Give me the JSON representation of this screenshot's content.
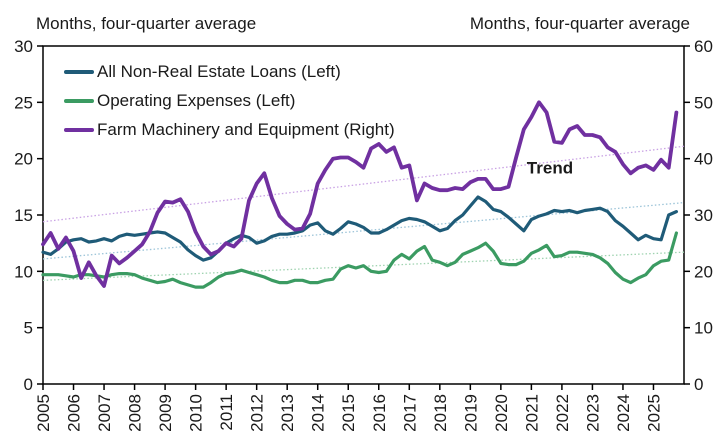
{
  "chart_data": {
    "type": "line",
    "title_left": "Months, four-quarter average",
    "title_right": "Months, four-quarter average",
    "x_range": [
      2005,
      2026
    ],
    "x_tick_labels": [
      "2005",
      "2006",
      "2007",
      "2008",
      "2009",
      "2010",
      "2011",
      "2012",
      "2013",
      "2014",
      "2015",
      "2016",
      "2017",
      "2018",
      "2019",
      "2020",
      "2021",
      "2022",
      "2023",
      "2024",
      "2025"
    ],
    "left_axis": {
      "ticks": [
        0,
        5,
        10,
        15,
        20,
        25,
        30
      ],
      "range": [
        0,
        30
      ]
    },
    "right_axis": {
      "ticks": [
        0,
        10,
        20,
        30,
        40,
        50,
        60
      ],
      "range": [
        0,
        60
      ]
    },
    "grid": false,
    "legend_position": "top-left-inside",
    "annotation": {
      "text": "Trend",
      "x": 2020.85,
      "axis": "right",
      "value": 37.4
    },
    "series": [
      {
        "name": "All Non-Real Estate Loans (Left)",
        "axis": "left",
        "color": "#1F5B78",
        "x_start": 2005.0,
        "x_step": 0.25,
        "values": [
          11.7,
          11.5,
          12.0,
          12.6,
          12.8,
          12.9,
          12.6,
          12.7,
          12.9,
          12.7,
          13.1,
          13.3,
          13.2,
          13.3,
          13.4,
          13.5,
          13.4,
          13.0,
          12.6,
          11.9,
          11.4,
          11.0,
          11.2,
          11.8,
          12.5,
          12.9,
          13.2,
          13.0,
          12.5,
          12.7,
          13.1,
          13.3,
          13.3,
          13.4,
          13.6,
          14.1,
          14.3,
          13.6,
          13.3,
          13.8,
          14.4,
          14.2,
          13.9,
          13.4,
          13.4,
          13.7,
          14.1,
          14.5,
          14.7,
          14.6,
          14.4,
          14.0,
          13.6,
          13.8,
          14.5,
          15.0,
          15.8,
          16.6,
          16.2,
          15.5,
          15.3,
          14.8,
          14.2,
          13.6,
          14.6,
          14.9,
          15.1,
          15.4,
          15.3,
          15.4,
          15.2,
          15.4,
          15.5,
          15.6,
          15.3,
          14.5,
          14.0,
          13.4,
          12.8,
          13.2,
          12.9,
          12.8,
          15.0,
          15.3
        ]
      },
      {
        "name": "Operating Expenses (Left)",
        "axis": "left",
        "color": "#3B9B62",
        "x_start": 2005.0,
        "x_step": 0.25,
        "values": [
          9.7,
          9.7,
          9.7,
          9.6,
          9.5,
          9.7,
          9.7,
          9.6,
          9.5,
          9.7,
          9.8,
          9.8,
          9.7,
          9.4,
          9.2,
          9.0,
          9.1,
          9.3,
          9.0,
          8.8,
          8.6,
          8.6,
          9.0,
          9.5,
          9.8,
          9.9,
          10.1,
          9.9,
          9.7,
          9.5,
          9.2,
          9.0,
          9.0,
          9.2,
          9.2,
          9.0,
          9.0,
          9.2,
          9.3,
          10.2,
          10.5,
          10.3,
          10.5,
          10.0,
          9.9,
          10.0,
          11.0,
          11.5,
          11.1,
          11.8,
          12.2,
          11.0,
          10.8,
          10.5,
          10.8,
          11.5,
          11.8,
          12.1,
          12.5,
          11.8,
          10.7,
          10.6,
          10.6,
          10.9,
          11.6,
          11.9,
          12.3,
          11.3,
          11.4,
          11.7,
          11.7,
          11.6,
          11.5,
          11.2,
          10.7,
          9.9,
          9.3,
          9.0,
          9.4,
          9.7,
          10.5,
          10.9,
          11.0,
          13.4
        ]
      },
      {
        "name": "Farm Machinery and Equipment (Right)",
        "axis": "right",
        "color": "#7030A0",
        "x_start": 2005.0,
        "x_step": 0.25,
        "values": [
          24.8,
          26.8,
          24.0,
          26.0,
          23.6,
          18.8,
          21.6,
          19.2,
          17.4,
          22.8,
          21.4,
          22.4,
          23.6,
          24.8,
          27.0,
          30.4,
          32.4,
          32.2,
          32.8,
          30.6,
          27.0,
          24.4,
          23.0,
          23.6,
          25.0,
          24.4,
          25.8,
          32.6,
          35.6,
          37.4,
          33.0,
          29.8,
          28.4,
          27.4,
          27.6,
          30.2,
          35.6,
          38.0,
          40.0,
          40.2,
          40.2,
          39.4,
          38.4,
          41.8,
          42.6,
          41.2,
          42.0,
          38.4,
          38.8,
          32.6,
          35.6,
          34.8,
          34.4,
          34.4,
          34.8,
          34.6,
          35.8,
          36.4,
          36.4,
          34.6,
          34.6,
          35.0,
          40.2,
          45.2,
          47.4,
          50.0,
          48.2,
          43.0,
          42.8,
          45.2,
          45.8,
          44.2,
          44.2,
          43.8,
          42.0,
          41.2,
          39.0,
          37.4,
          38.4,
          38.8,
          38.0,
          39.8,
          38.4,
          48.2
        ]
      }
    ],
    "trend_lines": [
      {
        "series": "All Non-Real Estate Loans (Left)",
        "axis": "left",
        "start": 11.1,
        "end": 16.1,
        "color": "#9CC4D8"
      },
      {
        "series": "Operating Expenses (Left)",
        "axis": "left",
        "start": 9.2,
        "end": 11.7,
        "color": "#9FD3B0"
      },
      {
        "series": "Farm Machinery and Equipment (Right)",
        "axis": "right",
        "start": 28.8,
        "end": 42.2,
        "color": "#C9A2E4"
      }
    ]
  }
}
